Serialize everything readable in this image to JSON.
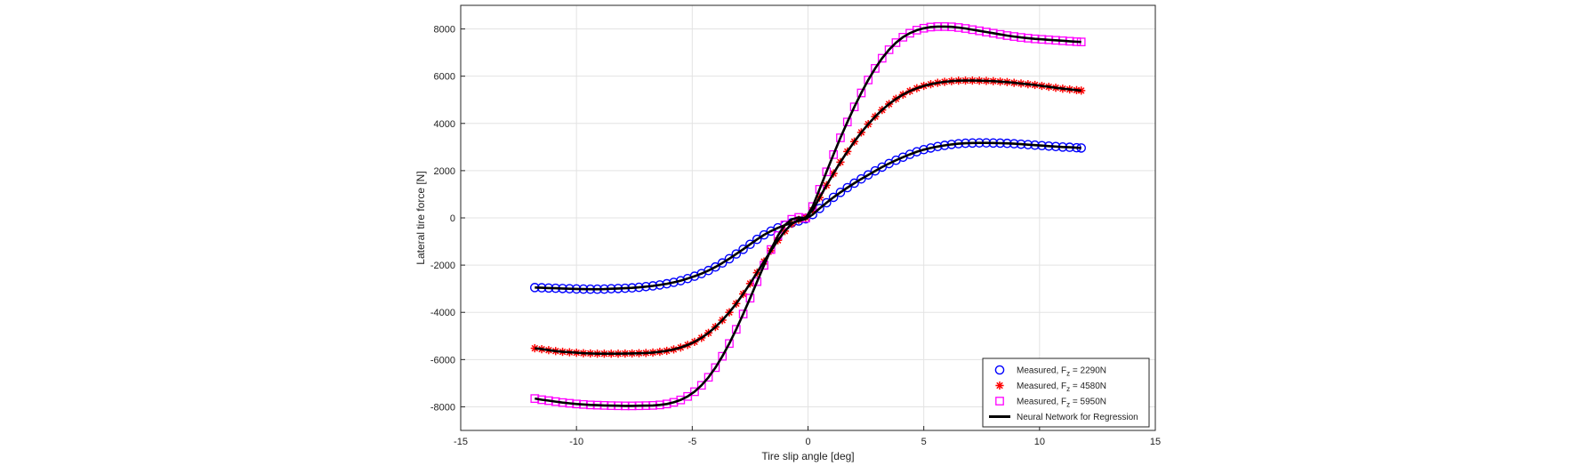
{
  "chart_data": {
    "type": "line",
    "title": "",
    "xlabel": "Tire slip angle [deg]",
    "ylabel": "Lateral tire force [N]",
    "xlim": [
      -15,
      15
    ],
    "ylim": [
      -9000,
      9000
    ],
    "xticks": [
      -15,
      -10,
      -5,
      0,
      5,
      10,
      15
    ],
    "yticks": [
      -8000,
      -6000,
      -4000,
      -2000,
      0,
      2000,
      4000,
      6000,
      8000
    ],
    "xtick_labels": [
      "-15",
      "-10",
      "-5",
      "0",
      "5",
      "10",
      "15"
    ],
    "ytick_labels": [
      "-8000",
      "-6000",
      "-4000",
      "-2000",
      "0",
      "2000",
      "4000",
      "6000",
      "8000"
    ],
    "grid": true,
    "legend_position": "bottom-right",
    "series": [
      {
        "name": "Measured, F_z = 2290N",
        "legend_prefix": "Measured, F",
        "legend_sub": "z",
        "legend_suffix": " = 2290N",
        "marker": "circle",
        "color": "#0000ff",
        "x": [
          -11.8,
          -11.5,
          -11.2,
          -10.9,
          -10.6,
          -10.3,
          -10.0,
          -9.7,
          -9.4,
          -9.1,
          -8.8,
          -8.5,
          -8.2,
          -7.9,
          -7.6,
          -7.3,
          -7.0,
          -6.7,
          -6.4,
          -6.1,
          -5.8,
          -5.5,
          -5.2,
          -4.9,
          -4.6,
          -4.3,
          -4.0,
          -3.7,
          -3.4,
          -3.1,
          -2.8,
          -2.5,
          -2.2,
          -1.9,
          -1.6,
          -1.3,
          -1.0,
          -0.7,
          -0.4,
          -0.1,
          0.2,
          0.5,
          0.8,
          1.1,
          1.4,
          1.7,
          2.0,
          2.3,
          2.6,
          2.9,
          3.2,
          3.5,
          3.8,
          4.1,
          4.4,
          4.7,
          5.0,
          5.3,
          5.6,
          5.9,
          6.2,
          6.5,
          6.8,
          7.1,
          7.4,
          7.7,
          8.0,
          8.3,
          8.6,
          8.9,
          9.2,
          9.5,
          9.8,
          10.1,
          10.4,
          10.7,
          11.0,
          11.3,
          11.6,
          11.8
        ],
        "y": [
          -2950,
          -2960,
          -2970,
          -2980,
          -2990,
          -3000,
          -3010,
          -3015,
          -3020,
          -3020,
          -3015,
          -3000,
          -2990,
          -2980,
          -2965,
          -2940,
          -2910,
          -2880,
          -2840,
          -2790,
          -2730,
          -2660,
          -2570,
          -2470,
          -2360,
          -2230,
          -2080,
          -1910,
          -1730,
          -1530,
          -1330,
          -1120,
          -910,
          -720,
          -560,
          -420,
          -310,
          -210,
          -130,
          -40,
          140,
          400,
          640,
          870,
          1080,
          1280,
          1470,
          1650,
          1820,
          1990,
          2150,
          2300,
          2440,
          2570,
          2690,
          2800,
          2890,
          2960,
          3020,
          3070,
          3110,
          3140,
          3160,
          3170,
          3175,
          3175,
          3170,
          3165,
          3155,
          3140,
          3120,
          3100,
          3080,
          3060,
          3040,
          3020,
          3000,
          2990,
          2970,
          2960
        ]
      },
      {
        "name": "Measured, F_z = 4580N",
        "legend_prefix": "Measured, F",
        "legend_sub": "z",
        "legend_suffix": " = 4580N",
        "marker": "star",
        "color": "#ff0000",
        "x": [
          -11.8,
          -11.5,
          -11.2,
          -10.9,
          -10.6,
          -10.3,
          -10.0,
          -9.7,
          -9.4,
          -9.1,
          -8.8,
          -8.5,
          -8.2,
          -7.9,
          -7.6,
          -7.3,
          -7.0,
          -6.7,
          -6.4,
          -6.1,
          -5.8,
          -5.5,
          -5.2,
          -4.9,
          -4.6,
          -4.3,
          -4.0,
          -3.7,
          -3.4,
          -3.1,
          -2.8,
          -2.5,
          -2.2,
          -1.9,
          -1.6,
          -1.3,
          -1.0,
          -0.7,
          -0.4,
          -0.1,
          0.2,
          0.5,
          0.8,
          1.1,
          1.4,
          1.7,
          2.0,
          2.3,
          2.6,
          2.9,
          3.2,
          3.5,
          3.8,
          4.1,
          4.4,
          4.7,
          5.0,
          5.3,
          5.6,
          5.9,
          6.2,
          6.5,
          6.8,
          7.1,
          7.4,
          7.7,
          8.0,
          8.3,
          8.6,
          8.9,
          9.2,
          9.5,
          9.8,
          10.1,
          10.4,
          10.7,
          11.0,
          11.3,
          11.6,
          11.8
        ],
        "y": [
          -5520,
          -5560,
          -5600,
          -5640,
          -5670,
          -5690,
          -5710,
          -5730,
          -5740,
          -5750,
          -5750,
          -5750,
          -5750,
          -5745,
          -5740,
          -5730,
          -5720,
          -5700,
          -5670,
          -5630,
          -5570,
          -5490,
          -5380,
          -5250,
          -5080,
          -4870,
          -4620,
          -4330,
          -4000,
          -3630,
          -3220,
          -2780,
          -2320,
          -1850,
          -1390,
          -950,
          -560,
          -250,
          -80,
          20,
          320,
          860,
          1380,
          1880,
          2360,
          2810,
          3230,
          3620,
          3970,
          4290,
          4570,
          4820,
          5040,
          5220,
          5370,
          5490,
          5590,
          5660,
          5720,
          5760,
          5790,
          5810,
          5815,
          5815,
          5810,
          5800,
          5790,
          5770,
          5750,
          5720,
          5690,
          5660,
          5630,
          5590,
          5550,
          5510,
          5470,
          5440,
          5410,
          5390
        ]
      },
      {
        "name": "Measured, F_z = 5950N",
        "legend_prefix": "Measured, F",
        "legend_sub": "z",
        "legend_suffix": " = 5950N",
        "marker": "square",
        "color": "#ff00ff",
        "x": [
          -11.8,
          -11.5,
          -11.2,
          -10.9,
          -10.6,
          -10.3,
          -10.0,
          -9.7,
          -9.4,
          -9.1,
          -8.8,
          -8.5,
          -8.2,
          -7.9,
          -7.6,
          -7.3,
          -7.0,
          -6.7,
          -6.4,
          -6.1,
          -5.8,
          -5.5,
          -5.2,
          -4.9,
          -4.6,
          -4.3,
          -4.0,
          -3.7,
          -3.4,
          -3.1,
          -2.8,
          -2.5,
          -2.2,
          -1.9,
          -1.6,
          -1.3,
          -1.0,
          -0.7,
          -0.4,
          -0.1,
          0.2,
          0.5,
          0.8,
          1.1,
          1.4,
          1.7,
          2.0,
          2.3,
          2.6,
          2.9,
          3.2,
          3.5,
          3.8,
          4.1,
          4.4,
          4.7,
          5.0,
          5.3,
          5.6,
          5.9,
          6.2,
          6.5,
          6.8,
          7.1,
          7.4,
          7.7,
          8.0,
          8.3,
          8.6,
          8.9,
          9.2,
          9.5,
          9.8,
          10.1,
          10.4,
          10.7,
          11.0,
          11.3,
          11.6,
          11.8
        ],
        "y": [
          -7650,
          -7700,
          -7740,
          -7780,
          -7820,
          -7850,
          -7880,
          -7900,
          -7920,
          -7930,
          -7940,
          -7950,
          -7955,
          -7960,
          -7960,
          -7955,
          -7950,
          -7940,
          -7920,
          -7880,
          -7810,
          -7710,
          -7560,
          -7360,
          -7090,
          -6750,
          -6340,
          -5860,
          -5320,
          -4720,
          -4070,
          -3400,
          -2700,
          -2010,
          -1340,
          -750,
          -300,
          -60,
          20,
          -10,
          480,
          1210,
          1950,
          2680,
          3390,
          4060,
          4700,
          5290,
          5840,
          6330,
          6760,
          7120,
          7420,
          7650,
          7820,
          7950,
          8030,
          8080,
          8100,
          8100,
          8090,
          8060,
          8020,
          7970,
          7920,
          7870,
          7820,
          7770,
          7720,
          7680,
          7640,
          7610,
          7580,
          7560,
          7540,
          7520,
          7500,
          7480,
          7460,
          7450
        ]
      },
      {
        "name": "Neural Network for Regression",
        "legend_prefix": "Neural Network for Regression",
        "legend_sub": "",
        "legend_suffix": "",
        "marker": "line",
        "color": "#000000",
        "note": "black solid lines overlaying each measured curve"
      }
    ]
  }
}
